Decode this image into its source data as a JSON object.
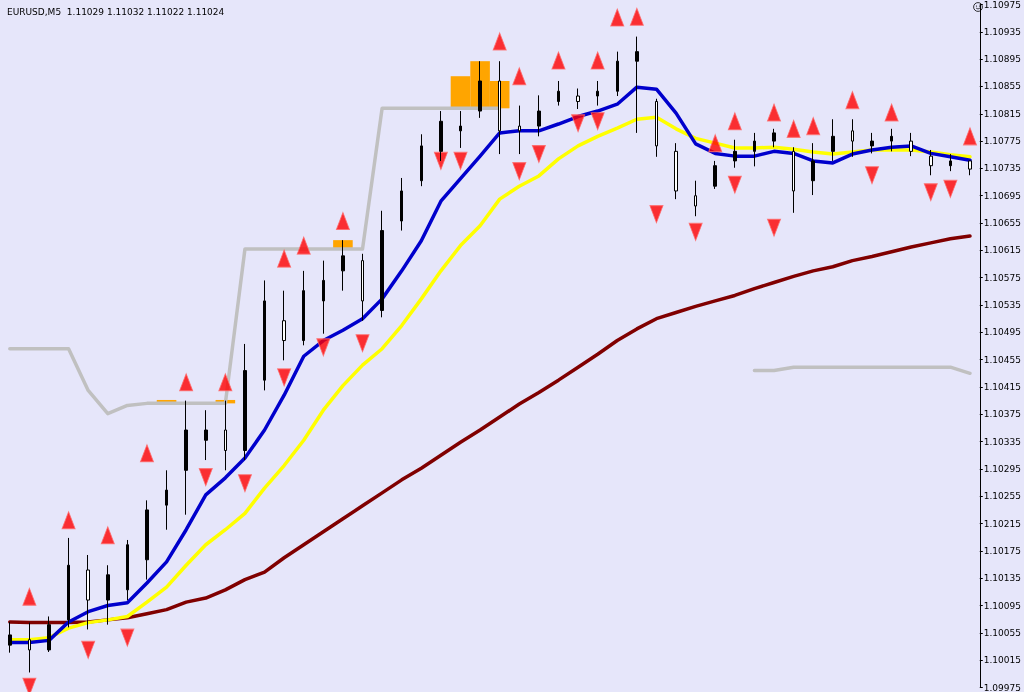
{
  "chart_data": {
    "type": "candlestick",
    "title": "EURUSD,M5  1.11029 1.11032 1.11022 1.11024",
    "categories": [
      null,
      null,
      null,
      null,
      null,
      null,
      null,
      null,
      null,
      null,
      null,
      null,
      null,
      null,
      null,
      null,
      null,
      null,
      null,
      null,
      null,
      null,
      null,
      null,
      null,
      null,
      null,
      null,
      null,
      null,
      null,
      null,
      null,
      null,
      null,
      null,
      null,
      null,
      null,
      null,
      null,
      null,
      null,
      null,
      null,
      null,
      null,
      null,
      null,
      null
    ],
    "ylim": [
      1.09975,
      1.10975
    ],
    "yticks": [
      1.09975,
      1.10015,
      1.10055,
      1.10095,
      1.10135,
      1.10175,
      1.10215,
      1.10255,
      1.10295,
      1.10335,
      1.10375,
      1.10415,
      1.10455,
      1.10495,
      1.10535,
      1.10575,
      1.10615,
      1.10655,
      1.10695,
      1.10735,
      1.10775,
      1.10815,
      1.10855,
      1.10895,
      1.10935,
      1.10975
    ],
    "tick_labels": "y",
    "series": [
      {
        "type": "line",
        "color": "#800000",
        "values": [
          1.10071,
          1.1007,
          1.1007,
          1.1007,
          1.10071,
          1.10074,
          1.10077,
          1.10083,
          1.10089,
          1.101,
          1.10106,
          1.10118,
          1.10133,
          1.10144,
          1.10165,
          1.10184,
          1.10203,
          1.10222,
          1.10241,
          1.1026,
          1.10279,
          1.10296,
          1.10315,
          1.10334,
          1.10352,
          1.10371,
          1.1039,
          1.10407,
          1.10425,
          1.10444,
          1.10463,
          1.10483,
          1.105,
          1.10515,
          1.10524,
          1.10533,
          1.10541,
          1.10549,
          1.10559,
          1.10568,
          1.10577,
          1.10585,
          1.10591,
          1.106,
          1.10606,
          1.10613,
          1.1062,
          1.10626,
          1.10632,
          1.10636
        ]
      },
      {
        "type": "line",
        "color": "#c0c0c0",
        "values": [
          1.10471,
          1.10471,
          1.10471,
          1.10471,
          1.1041,
          1.10376,
          1.10388,
          1.10391,
          1.10391,
          1.10391,
          1.10391,
          1.10391,
          1.10617,
          1.10617,
          1.10617,
          1.10617,
          1.10617,
          1.10617,
          1.10617,
          1.10823,
          1.10823,
          1.10823,
          1.10823,
          1.10823,
          1.10823,
          1.10823,
          null,
          null,
          null,
          null,
          null,
          null,
          null,
          null,
          null,
          null,
          null,
          null,
          1.10439,
          1.10439,
          1.10444,
          1.10444,
          1.10444,
          1.10444,
          1.10444,
          1.10444,
          1.10444,
          1.10444,
          1.10444,
          1.10435
        ]
      },
      {
        "type": "line",
        "color": "#ffff00",
        "values": [
          1.10045,
          1.10045,
          1.10048,
          1.10062,
          1.1007,
          1.10074,
          1.10079,
          1.101,
          1.10122,
          1.10154,
          1.10184,
          1.10206,
          1.1023,
          1.10267,
          1.103,
          1.10337,
          1.10381,
          1.10417,
          1.10447,
          1.10471,
          1.10505,
          1.10544,
          1.10585,
          1.10622,
          1.10651,
          1.1069,
          1.10709,
          1.10724,
          1.10749,
          1.10768,
          1.10782,
          1.10794,
          1.10807,
          1.1081,
          1.10793,
          1.10779,
          1.10772,
          1.10765,
          1.10765,
          1.10766,
          1.10763,
          1.10759,
          1.10756,
          1.10759,
          1.10762,
          1.10762,
          1.10762,
          1.10759,
          1.10755,
          1.10752
        ]
      },
      {
        "type": "line",
        "color": "#0000cc",
        "values": [
          1.10041,
          1.10041,
          1.10044,
          1.10071,
          1.10086,
          1.10095,
          1.10099,
          1.10128,
          1.10159,
          1.10206,
          1.10257,
          1.10282,
          1.10311,
          1.10352,
          1.10403,
          1.1046,
          1.10483,
          1.10498,
          1.10515,
          1.10544,
          1.10585,
          1.10629,
          1.10687,
          1.1072,
          1.10753,
          1.10787,
          1.1079,
          1.1079,
          1.108,
          1.10811,
          1.10819,
          1.10829,
          1.10854,
          1.10851,
          1.10816,
          1.10771,
          1.10757,
          1.10753,
          1.10753,
          1.1076,
          1.10757,
          1.10746,
          1.10743,
          1.10756,
          1.10762,
          1.10766,
          1.10768,
          1.10757,
          1.10752,
          1.10747
        ]
      },
      {
        "type": "bar",
        "color": "#ffa500",
        "base": [
          null,
          null,
          null,
          null,
          null,
          null,
          null,
          null,
          1.10391,
          null,
          null,
          1.10391,
          null,
          null,
          null,
          null,
          null,
          1.10617,
          null,
          null,
          null,
          null,
          null,
          1.10823,
          1.10823,
          1.10823,
          null,
          null,
          null,
          null,
          null,
          null,
          null,
          null,
          null,
          null,
          null,
          null,
          null,
          null,
          null,
          null,
          null,
          null,
          null,
          null,
          null,
          null,
          null,
          null
        ],
        "values": [
          null,
          null,
          null,
          null,
          null,
          null,
          null,
          null,
          5e-05,
          null,
          null,
          5e-05,
          null,
          null,
          null,
          null,
          null,
          0.00013,
          null,
          null,
          null,
          null,
          null,
          0.00047,
          0.00069,
          0.0004,
          null,
          null,
          null,
          null,
          null,
          null,
          null,
          null,
          null,
          null,
          null,
          null,
          null,
          null,
          null,
          null,
          null,
          null,
          null,
          null,
          null,
          null,
          null,
          null
        ]
      },
      {
        "color": "#000000",
        "ohlc": [
          [
            1.10037,
            1.10071,
            1.10026,
            1.10052
          ],
          [
            1.10045,
            1.1007,
            1.09997,
            1.1003
          ],
          [
            1.1003,
            1.10079,
            1.10027,
            1.10067
          ],
          [
            1.10074,
            1.10194,
            1.10063,
            1.10154
          ],
          [
            1.10147,
            1.10169,
            1.1006,
            1.10103
          ],
          [
            1.10103,
            1.10154,
            1.10067,
            1.1014
          ],
          [
            1.10118,
            1.10191,
            1.10103,
            1.10184
          ],
          [
            1.10162,
            1.10249,
            1.10133,
            1.10235
          ],
          [
            1.10242,
            1.10293,
            1.10206,
            1.10264
          ],
          [
            1.10293,
            1.10395,
            1.10228,
            1.10352
          ],
          [
            1.10337,
            1.10381,
            1.10308,
            1.10352
          ],
          [
            1.10352,
            1.10395,
            1.10293,
            1.10322
          ],
          [
            1.10322,
            1.10478,
            1.10308,
            1.10439
          ],
          [
            1.10425,
            1.10571,
            1.1041,
            1.10541
          ],
          [
            1.10512,
            1.10556,
            1.10454,
            1.10483
          ],
          [
            1.10483,
            1.10585,
            1.10476,
            1.10556
          ],
          [
            1.10541,
            1.106,
            1.10493,
            1.10571
          ],
          [
            1.10585,
            1.1063,
            1.10556,
            1.10607
          ],
          [
            1.106,
            1.1061,
            1.10512,
            1.10541
          ],
          [
            1.10527,
            1.10673,
            1.10517,
            1.10644
          ],
          [
            1.10658,
            1.10721,
            1.10644,
            1.10702
          ],
          [
            1.10717,
            1.10785,
            1.10709,
            1.10768
          ],
          [
            1.1076,
            1.10819,
            1.10746,
            1.10804
          ],
          [
            1.1079,
            1.10819,
            1.10765,
            1.10797
          ],
          [
            1.10819,
            1.10892,
            1.10809,
            1.10863
          ],
          [
            1.10863,
            1.10892,
            1.10756,
            1.1079
          ],
          [
            1.10797,
            1.10827,
            1.10756,
            1.1079
          ],
          [
            1.10797,
            1.10842,
            1.10782,
            1.10819
          ],
          [
            1.10833,
            1.10863,
            1.10827,
            1.10848
          ],
          [
            1.10841,
            1.10852,
            1.10822,
            1.10833
          ],
          [
            1.10841,
            1.10863,
            1.10827,
            1.10848
          ],
          [
            1.10848,
            1.10906,
            1.10841,
            1.10892
          ],
          [
            1.10892,
            1.10928,
            1.10787,
            1.10906
          ],
          [
            1.10833,
            1.10837,
            1.10752,
            1.10768
          ],
          [
            1.1076,
            1.10772,
            1.1069,
            1.10702
          ],
          [
            1.10695,
            1.10717,
            1.10665,
            1.1068
          ],
          [
            1.10709,
            1.10746,
            1.10705,
            1.10739
          ],
          [
            1.10746,
            1.10777,
            1.10736,
            1.1076
          ],
          [
            1.1076,
            1.10787,
            1.10738,
            1.10775
          ],
          [
            1.10775,
            1.10793,
            1.10766,
            1.10787
          ],
          [
            1.1076,
            1.10766,
            1.1067,
            1.10702
          ],
          [
            1.10717,
            1.10772,
            1.10696,
            1.10746
          ],
          [
            1.1076,
            1.10807,
            1.10746,
            1.10782
          ],
          [
            1.1079,
            1.10807,
            1.10752,
            1.10775
          ],
          [
            1.10768,
            1.10787,
            1.10757,
            1.10775
          ],
          [
            1.10775,
            1.10793,
            1.1076,
            1.10782
          ],
          [
            1.10775,
            1.10787,
            1.10753,
            1.1076
          ],
          [
            1.10753,
            1.10762,
            1.10725,
            1.10739
          ],
          [
            1.10739,
            1.10756,
            1.10731,
            1.10746
          ],
          [
            1.10746,
            1.10746,
            1.10725,
            1.10734
          ]
        ]
      },
      {
        "type": "scatter",
        "marker": "triangle",
        "color": "#ff0000",
        "values": [
          null,
          1.10108,
          null,
          1.1022,
          null,
          1.10198,
          null,
          1.10318,
          null,
          1.10422,
          null,
          1.10422,
          null,
          null,
          1.10603,
          1.10622,
          null,
          1.10658,
          null,
          null,
          null,
          null,
          null,
          null,
          null,
          1.10921,
          1.1087,
          null,
          1.10893,
          null,
          1.10893,
          1.10956,
          1.10957,
          null,
          null,
          null,
          1.10772,
          1.10804,
          null,
          1.10817,
          1.10793,
          1.10797,
          null,
          1.10835,
          null,
          1.10817,
          null,
          null,
          null,
          1.10782
        ]
      },
      {
        "type": "scatter",
        "marker": "triangle",
        "color": "#ff0000",
        "values": [
          null,
          1.09976,
          null,
          null,
          1.1003,
          null,
          1.10048,
          null,
          null,
          null,
          1.10283,
          null,
          1.10274,
          null,
          1.10429,
          null,
          1.10473,
          null,
          1.10479,
          null,
          null,
          null,
          1.10746,
          1.10746,
          null,
          null,
          1.10731,
          1.10756,
          null,
          1.10801,
          1.10804,
          null,
          null,
          1.10668,
          null,
          1.10642,
          null,
          1.10711,
          null,
          1.10648,
          null,
          null,
          null,
          null,
          1.10725,
          null,
          null,
          1.107,
          1.10705,
          null
        ]
      }
    ]
  }
}
